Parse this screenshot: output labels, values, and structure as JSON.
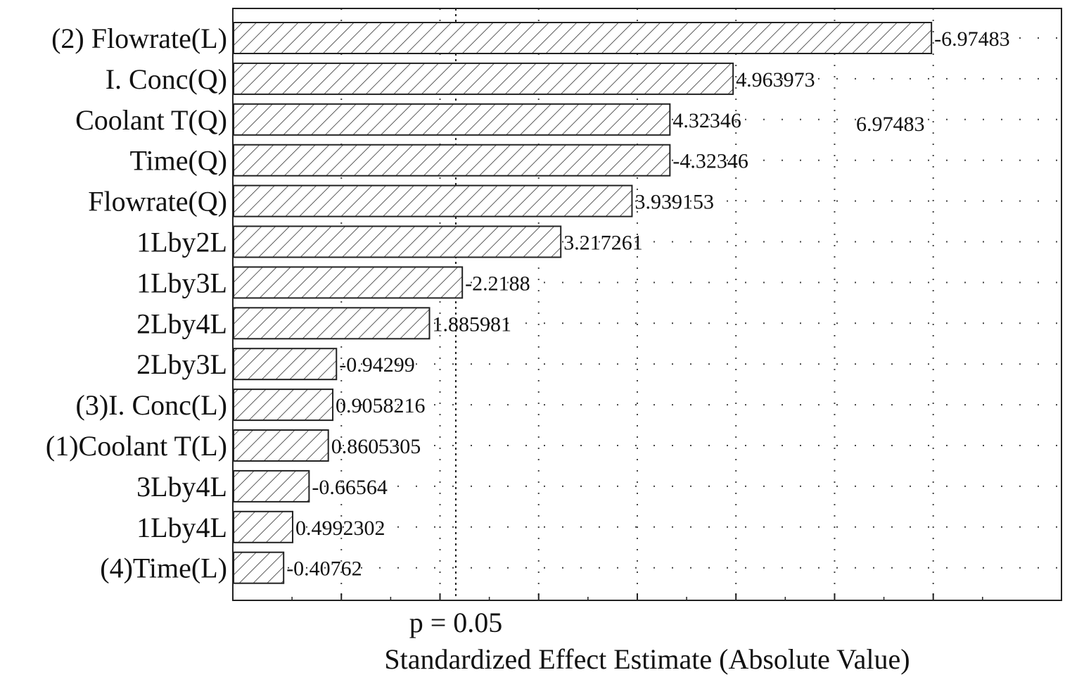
{
  "chart_data": {
    "type": "bar",
    "orientation": "horizontal",
    "categories": [
      "(2) Flowrate(L)",
      "I. Conc(Q)",
      "Coolant T(Q)",
      "Time(Q)",
      "Flowrate(Q)",
      "1Lby2L",
      "1Lby3L",
      "2Lby4L",
      "2Lby3L",
      "(3)I. Conc(L)",
      "(1)Coolant T(L)",
      "3Lby4L",
      "1Lby4L",
      "(4)Time(L)"
    ],
    "values": [
      6.97483,
      4.963973,
      4.32346,
      4.32346,
      3.939153,
      3.217261,
      2.2188,
      1.885981,
      0.94299,
      0.9058216,
      0.8605305,
      0.66564,
      0.4992302,
      0.40762
    ],
    "value_labels": [
      "-6.97483",
      "4.963973",
      "4.32346",
      "-4.32346",
      "3.939153",
      "3.217261",
      "-2.2188",
      "1.885981",
      "-0.94299",
      "0.9058216",
      "0.8605305",
      "-0.66564",
      "0.4992302",
      "-0.40762"
    ],
    "extra_annotation": "6.97483",
    "reference_line": {
      "value": 2.1604,
      "label": "p = 0.05"
    },
    "xlabel": "Standardized Effect Estimate (Absolute Value)",
    "ylabel": "",
    "xlim": [
      -0.1,
      8.3
    ],
    "x_minor_ticks": [
      1,
      2,
      3,
      4,
      5,
      6,
      7
    ],
    "grid": "dotted vertical",
    "bar_fill": "diagonal hatch",
    "colors": {
      "bar_stroke": "#222222",
      "hatch": "#333333",
      "text": "#111111",
      "frame": "#222222",
      "grid": "#444444"
    }
  }
}
